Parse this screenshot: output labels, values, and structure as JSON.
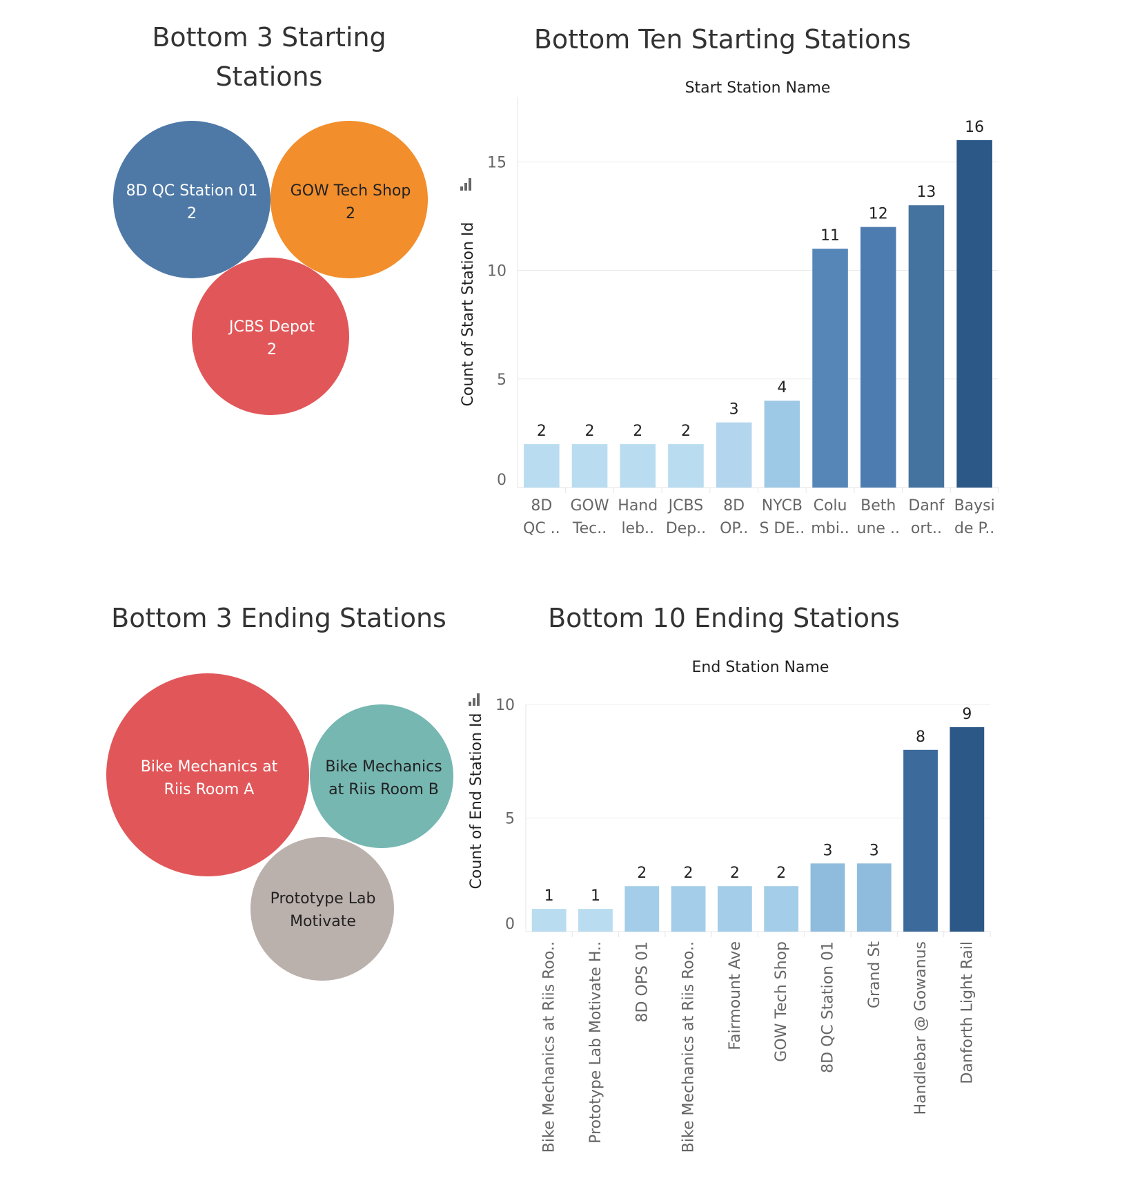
{
  "bubbles_start": {
    "title_lines": [
      "Bottom 3 Starting",
      "Stations"
    ],
    "items": [
      {
        "lines": [
          "8D QC Station 01",
          "2"
        ],
        "value": 2,
        "color": "#4e79a7",
        "text_color": "#ffffff"
      },
      {
        "lines": [
          "GOW Tech Shop",
          "2"
        ],
        "value": 2,
        "color": "#f28e2b",
        "text_color": "#222222"
      },
      {
        "lines": [
          "JCBS Depot",
          "2"
        ],
        "value": 2,
        "color": "#e15759",
        "text_color": "#ffffff"
      }
    ]
  },
  "bubbles_end": {
    "title_lines": [
      "Bottom 3 Ending Stations"
    ],
    "items": [
      {
        "lines": [
          "Bike Mechanics at",
          "Riis Room A"
        ],
        "color": "#e15759",
        "text_color": "#ffffff"
      },
      {
        "lines": [
          "Bike Mechanics",
          "at Riis Room B"
        ],
        "color": "#76b7b2",
        "text_color": "#222222"
      },
      {
        "lines": [
          "Prototype Lab",
          "Motivate"
        ],
        "color": "#bab0ac",
        "text_color": "#222222"
      }
    ]
  },
  "chart_data": [
    {
      "type": "bar",
      "title": "Bottom Ten Starting Stations",
      "subtitle": "Start Station Name",
      "ylabel": "Count of Start Station Id",
      "ylim": [
        0,
        18
      ],
      "yticks": [
        0,
        5,
        10,
        15
      ],
      "categories": [
        [
          "8D",
          "QC .."
        ],
        [
          "GOW",
          "Tec.."
        ],
        [
          "Hand",
          "leb.."
        ],
        [
          "JCBS",
          "Dep.."
        ],
        [
          "8D",
          "OP.."
        ],
        [
          "NYCB",
          "S DE.."
        ],
        [
          "Colu",
          "mbi.."
        ],
        [
          "Beth",
          "une .."
        ],
        [
          "Danf",
          "ort.."
        ],
        [
          "Baysi",
          "de P.."
        ]
      ],
      "values": [
        2,
        2,
        2,
        2,
        3,
        4,
        11,
        12,
        13,
        16
      ],
      "value_labels": [
        "2",
        "2",
        "2",
        "2",
        "3",
        "4",
        "11",
        "12",
        "13",
        "16"
      ],
      "colors": [
        "#b9dcf0",
        "#b9dcf0",
        "#b9dcf0",
        "#b9dcf0",
        "#b3d6ee",
        "#9ec9e6",
        "#5686b8",
        "#4d7db0",
        "#44739f",
        "#2c5887"
      ]
    },
    {
      "type": "bar",
      "title": "Bottom 10 Ending Stations",
      "subtitle": "End Station Name",
      "ylabel": "Count of End Station Id",
      "ylim": [
        0,
        10
      ],
      "yticks": [
        0,
        5,
        10
      ],
      "categories": [
        "Bike Mechanics at Riis Roo..",
        "Prototype Lab Motivate H..",
        "8D OPS 01",
        "Bike Mechanics at Riis Roo..",
        "Fairmount Ave",
        "GOW Tech Shop",
        "8D QC Station 01",
        "Grand St",
        "Handlebar @ Gowanus",
        "Danforth Light Rail"
      ],
      "values": [
        1,
        1,
        2,
        2,
        2,
        2,
        3,
        3,
        8,
        9
      ],
      "value_labels": [
        "1",
        "1",
        "2",
        "2",
        "2",
        "2",
        "3",
        "3",
        "8",
        "9"
      ],
      "colors": [
        "#b9dcf0",
        "#b9dcf0",
        "#a3cde8",
        "#a3cde8",
        "#a3cde8",
        "#a3cde8",
        "#8fbcdc",
        "#8fbcdc",
        "#3b6a9b",
        "#2c5887"
      ]
    }
  ]
}
